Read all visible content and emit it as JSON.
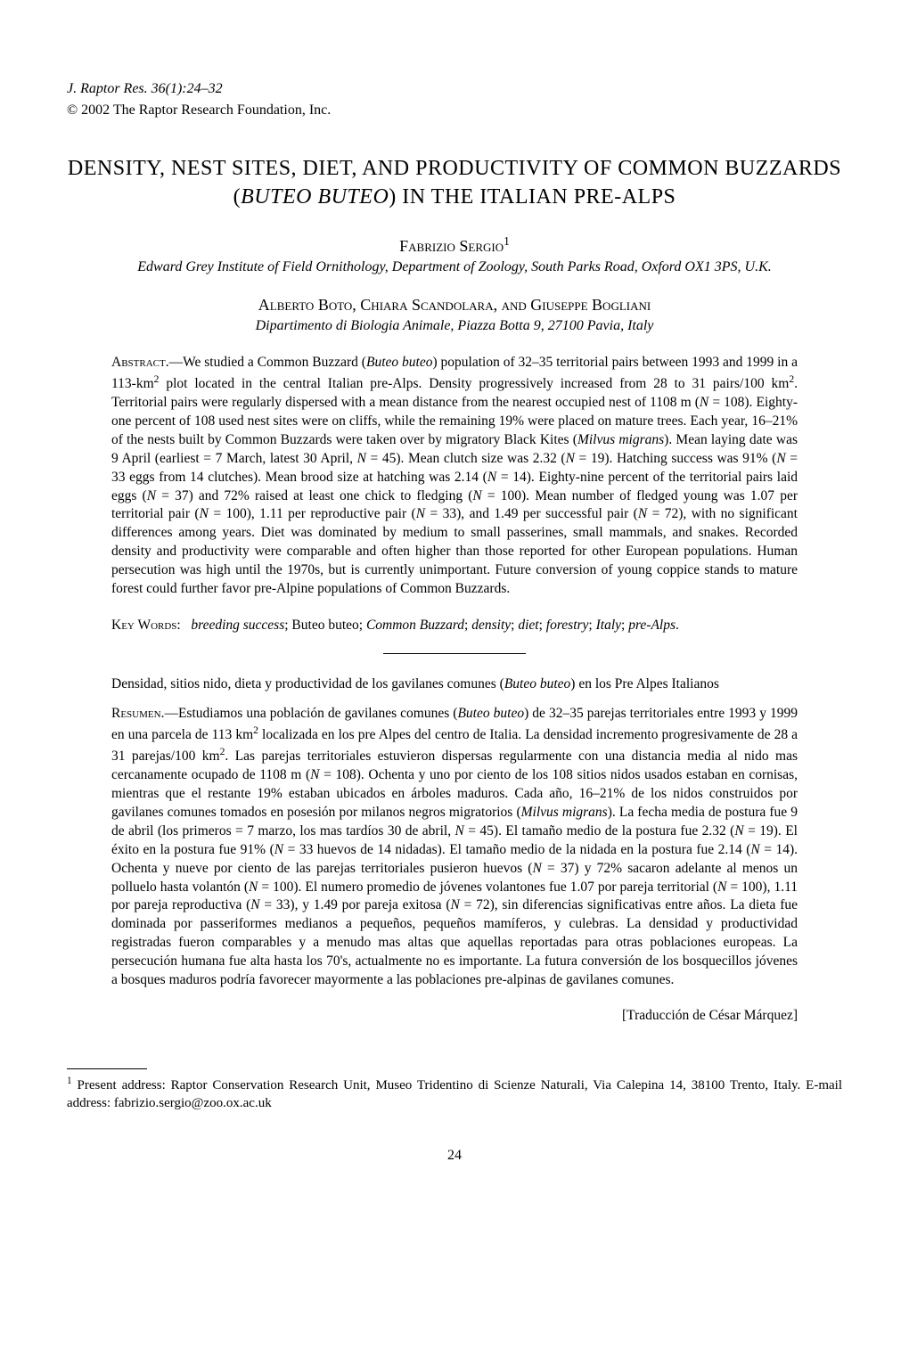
{
  "header": {
    "journal_line": "J. Raptor Res. 36(1):24–32",
    "copyright_line": "© 2002 The Raptor Research Foundation, Inc."
  },
  "title": "DENSITY, NEST SITES, DIET, AND PRODUCTIVITY OF COMMON BUZZARDS (BUTEO BUTEO) IN THE ITALIAN PRE-ALPS",
  "authors": [
    {
      "name": "Fabrizio Sergio",
      "sup": "1",
      "affiliation": "Edward Grey Institute of Field Ornithology, Department of Zoology, South Parks Road, Oxford OX1 3PS, U.K."
    },
    {
      "name": "Alberto Boto, Chiara Scandolara, and Giuseppe Bogliani",
      "sup": "",
      "affiliation": "Dipartimento di Biologia Animale, Piazza Botta 9, 27100 Pavia, Italy"
    }
  ],
  "abstract_label": "Abstract.—",
  "abstract_text": "We studied a Common Buzzard (Buteo buteo) population of 32–35 territorial pairs between 1993 and 1999 in a 113-km² plot located in the central Italian pre-Alps. Density progressively increased from 28 to 31 pairs/100 km². Territorial pairs were regularly dispersed with a mean distance from the nearest occupied nest of 1108 m (N = 108). Eighty-one percent of 108 used nest sites were on cliffs, while the remaining 19% were placed on mature trees. Each year, 16–21% of the nests built by Common Buzzards were taken over by migratory Black Kites (Milvus migrans). Mean laying date was 9 April (earliest = 7 March, latest 30 April, N = 45). Mean clutch size was 2.32 (N = 19). Hatching success was 91% (N = 33 eggs from 14 clutches). Mean brood size at hatching was 2.14 (N = 14). Eighty-nine percent of the territorial pairs laid eggs (N = 37) and 72% raised at least one chick to fledging (N = 100). Mean number of fledged young was 1.07 per territorial pair (N = 100), 1.11 per reproductive pair (N = 33), and 1.49 per successful pair (N = 72), with no significant differences among years. Diet was dominated by medium to small passerines, small mammals, and snakes. Recorded density and productivity were comparable and often higher than those reported for other European populations. Human persecution was high until the 1970s, but is currently unimportant. Future conversion of young coppice stands to mature forest could further favor pre-Alpine populations of Common Buzzards.",
  "keywords_label": "Key Words:",
  "keywords_text": "breeding success; Buteo buteo; Common Buzzard; density; diet; forestry; Italy; pre-Alps.",
  "spanish_title": "Densidad, sitios nido, dieta y productividad de los gavilanes comunes (Buteo buteo) en los Pre Alpes Italianos",
  "resumen_label": "Resumen.—",
  "resumen_text": "Estudiamos una población de gavilanes comunes (Buteo buteo) de 32–35 parejas territoriales entre 1993 y 1999 en una parcela de 113 km² localizada en los pre Alpes del centro de Italia. La densidad incremento progresivamente de 28 a 31 parejas/100 km². Las parejas territoriales estuvieron dispersas regularmente con una distancia media al nido mas cercanamente ocupado de 1108 m (N = 108). Ochenta y uno por ciento de los 108 sitios nidos usados estaban en cornisas, mientras que el restante 19% estaban ubicados en árboles maduros. Cada año, 16–21% de los nidos construidos por gavilanes comunes tomados en posesión por milanos negros migratorios (Milvus migrans). La fecha media de postura fue 9 de abril (los primeros = 7 marzo, los mas tardíos 30 de abril, N = 45). El tamaño medio de la postura fue 2.32 (N = 19). El éxito en la postura fue 91% (N = 33 huevos de 14 nidadas). El tamaño medio de la nidada en la postura fue 2.14 (N = 14). Ochenta y nueve por ciento de las parejas territoriales pusieron huevos (N = 37) y 72% sacaron adelante al menos un polluelo hasta volantón (N = 100). El numero promedio de jóvenes volantones fue 1.07 por pareja territorial (N = 100), 1.11 por pareja reproductiva (N = 33), y 1.49 por pareja exitosa (N = 72), sin diferencias significativas entre años. La dieta fue dominada por passeriformes medianos a pequeños, pequeños mamíferos, y culebras. La densidad y productividad registradas fueron comparables y a menudo mas altas que aquellas reportadas para otras poblaciones europeas. La persecución humana fue alta hasta los 70's, actualmente no es importante. La futura conversión de los bosquecillos jóvenes a bosques maduros podría favorecer mayormente a las poblaciones pre-alpinas de gavilanes comunes.",
  "translation_credit": "[Traducción de César Márquez]",
  "footnote": {
    "marker": "1",
    "text": " Present address: Raptor Conservation Research Unit, Museo Tridentino di Scienze Naturali, Via Calepina 14, 38100 Trento, Italy. E-mail address: fabrizio.sergio@zoo.ox.ac.uk"
  },
  "page_number": "24"
}
